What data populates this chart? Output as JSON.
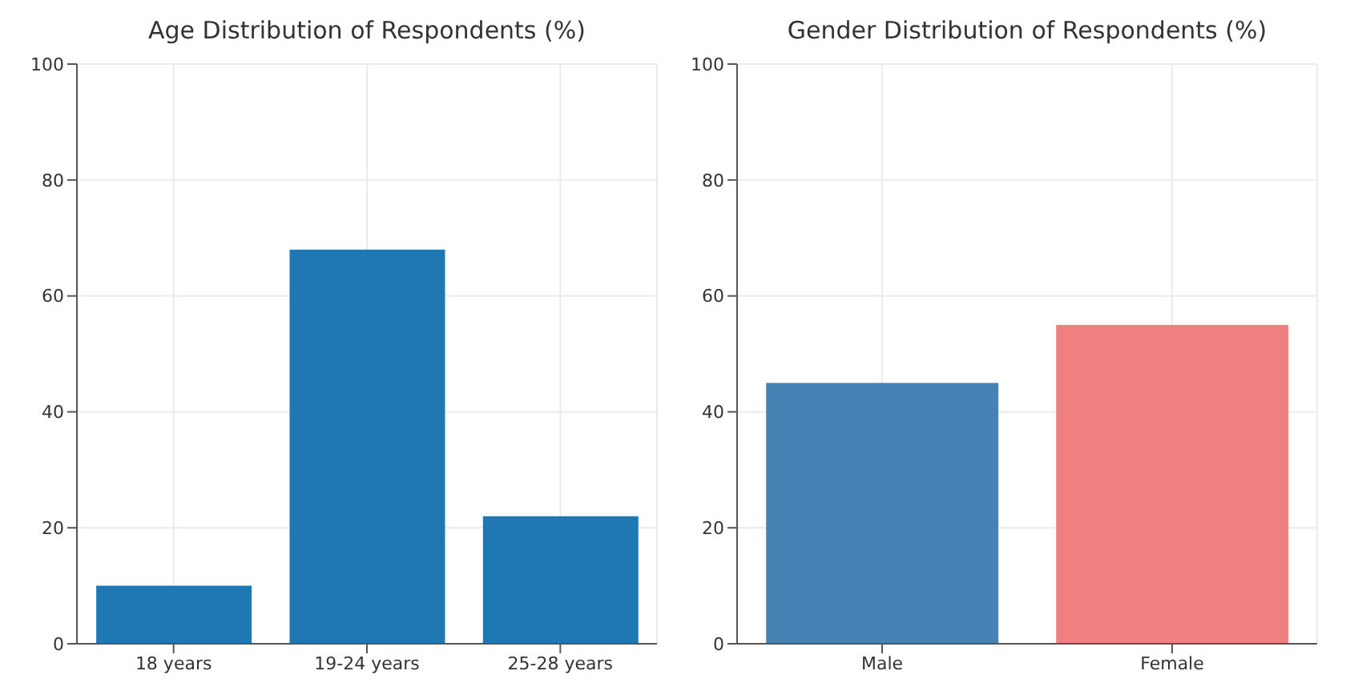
{
  "chart_data": [
    {
      "type": "bar",
      "title": "Age Distribution of Respondents (%)",
      "categories": [
        "18 years",
        "19-24 years",
        "25-28 years"
      ],
      "values": [
        10,
        68,
        22
      ],
      "color": "#1f77b4",
      "ylim": [
        0,
        100
      ],
      "yticks": [
        0,
        20,
        40,
        60,
        80,
        100
      ],
      "grid": true
    },
    {
      "type": "bar",
      "title": "Gender Distribution of Respondents (%)",
      "categories": [
        "Male",
        "Female"
      ],
      "values": [
        45,
        55
      ],
      "colors": [
        "#4682b4",
        "#f08080"
      ],
      "ylim": [
        0,
        100
      ],
      "yticks": [
        0,
        20,
        40,
        60,
        80,
        100
      ],
      "grid": true
    }
  ]
}
